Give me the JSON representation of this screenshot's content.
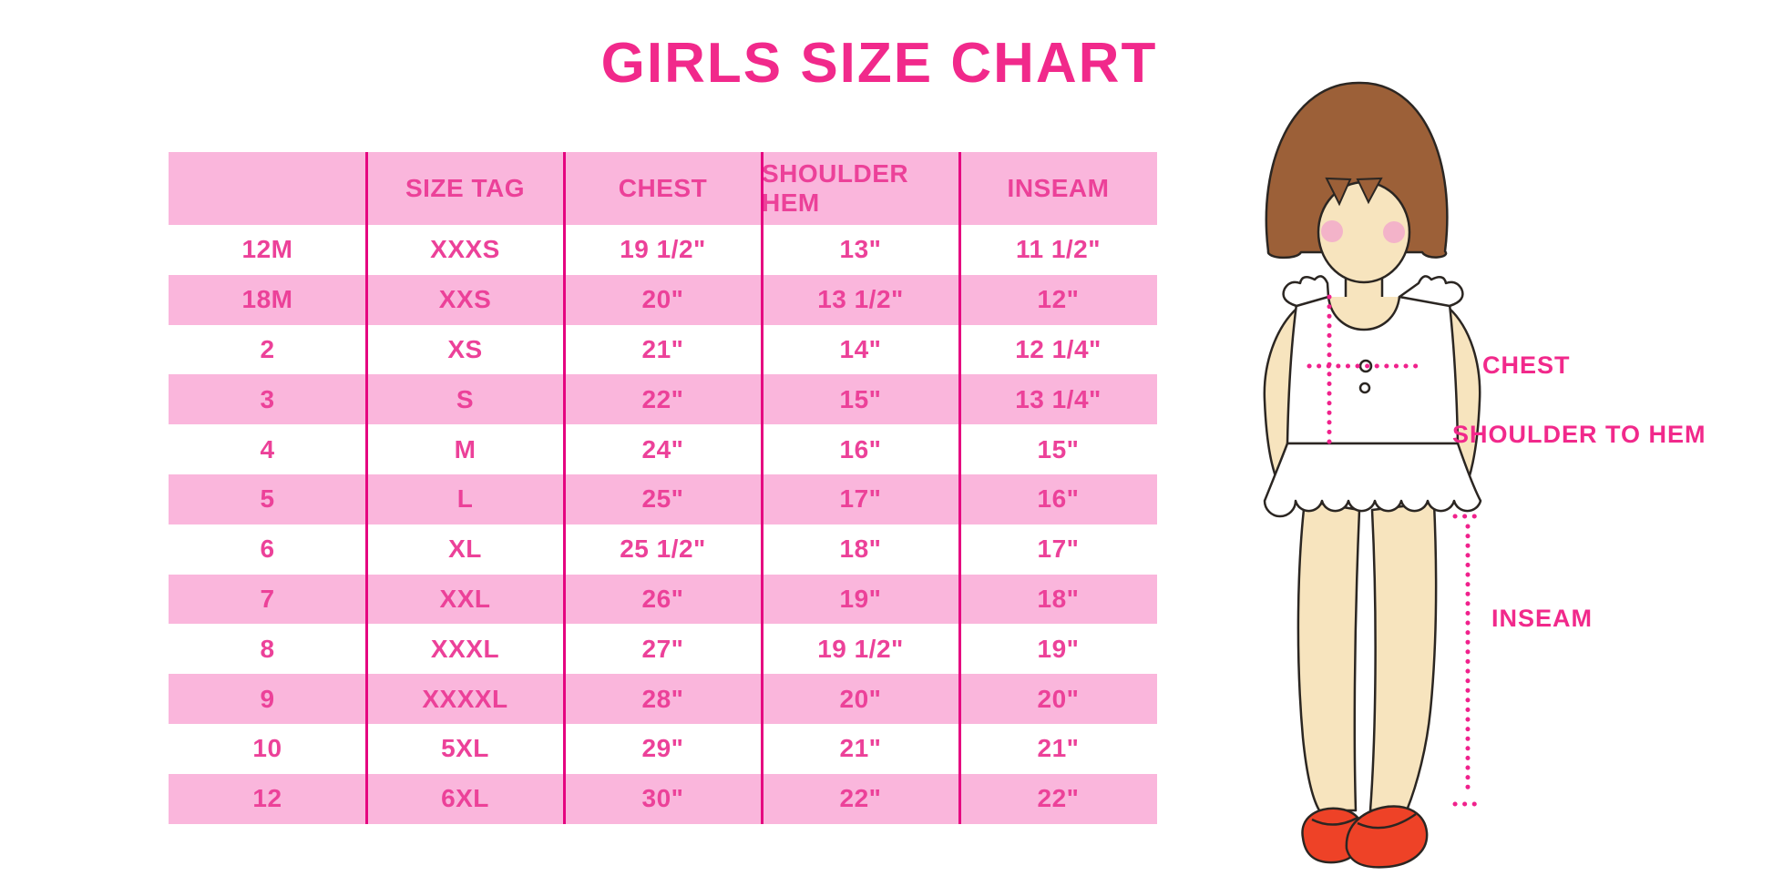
{
  "title": "GIRLS SIZE CHART",
  "colors": {
    "accent_pink": "#F1298B",
    "table_text": "#EC4199",
    "row_pink": "#FAB6DC",
    "line_magenta": "#E50580",
    "dot_magenta": "#F0218C",
    "hair_brown": "#9C6038",
    "skin": "#F7E4BE",
    "blush": "#F3B3C9",
    "shoe_red": "#EE4227"
  },
  "chart_data": {
    "type": "table",
    "title": "GIRLS SIZE CHART",
    "columns": [
      "",
      "SIZE TAG",
      "CHEST",
      "SHOULDER HEM",
      "INSEAM"
    ],
    "rows": [
      [
        "12M",
        "XXXS",
        "19 1/2\"",
        "13\"",
        "11 1/2\""
      ],
      [
        "18M",
        "XXS",
        "20\"",
        "13 1/2\"",
        "12\""
      ],
      [
        "2",
        "XS",
        "21\"",
        "14\"",
        "12 1/4\""
      ],
      [
        "3",
        "S",
        "22\"",
        "15\"",
        "13 1/4\""
      ],
      [
        "4",
        "M",
        "24\"",
        "16\"",
        "15\""
      ],
      [
        "5",
        "L",
        "25\"",
        "17\"",
        "16\""
      ],
      [
        "6",
        "XL",
        "25 1/2\"",
        "18\"",
        "17\""
      ],
      [
        "7",
        "XXL",
        "26\"",
        "19\"",
        "18\""
      ],
      [
        "8",
        "XXXL",
        "27\"",
        "19 1/2\"",
        "19\""
      ],
      [
        "9",
        "XXXXL",
        "28\"",
        "20\"",
        "20\""
      ],
      [
        "10",
        "5XL",
        "29\"",
        "21\"",
        "21\""
      ],
      [
        "12",
        "6XL",
        "30\"",
        "22\"",
        "22\""
      ]
    ]
  },
  "diagram": {
    "chest_label": "CHEST",
    "shoulder_to_hem_label": "SHOULDER TO HEM",
    "inseam_label": "INSEAM"
  }
}
